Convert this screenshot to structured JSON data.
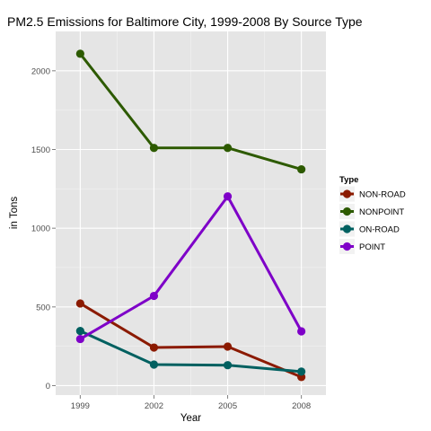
{
  "chart_data": {
    "type": "line",
    "title": "PM2.5 Emissions for Baltimore City, 1999-2008 By Source Type",
    "xlabel": "Year",
    "ylabel": "in Tons",
    "x": [
      1999,
      2002,
      2005,
      2008
    ],
    "x_tick_labels": [
      "1999",
      "2002",
      "2005",
      "2008"
    ],
    "y_ticks": [
      0,
      500,
      1000,
      1500,
      2000
    ],
    "y_tick_labels": [
      "0",
      "500",
      "1000",
      "1500",
      "2000"
    ],
    "ylim": [
      -60,
      2250
    ],
    "xlim": [
      1998,
      2009
    ],
    "grid": true,
    "legend": {
      "title": "Type",
      "position": "right"
    },
    "series": [
      {
        "name": "NON-ROAD",
        "color": "#8B1A00",
        "values": [
          522,
          242,
          248,
          55
        ]
      },
      {
        "name": "NONPOINT",
        "color": "#2D5A00",
        "values": [
          2108,
          1510,
          1510,
          1374
        ]
      },
      {
        "name": "ON-ROAD",
        "color": "#006060",
        "values": [
          347,
          134,
          130,
          89
        ]
      },
      {
        "name": "POINT",
        "color": "#7E00C8",
        "values": [
          296,
          570,
          1202,
          345
        ]
      }
    ]
  }
}
